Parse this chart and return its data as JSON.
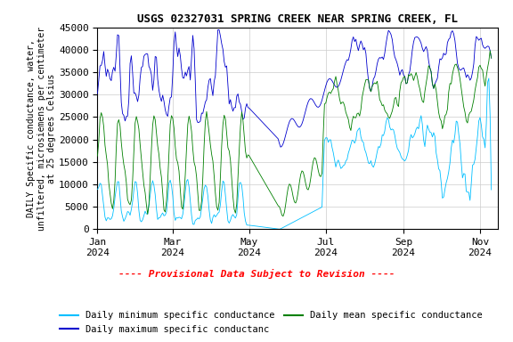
{
  "title": "USGS 02327031 SPRING CREEK NEAR SPRING CREEK, FL",
  "ylabel": "DAILY Specific conductance, water,\nunfiltered, microsiemens per centimeter\nat 25 degrees Celsius",
  "xlabel_ticks": [
    "Jan\n2024",
    "Mar\n2024",
    "May\n2024",
    "Jul\n2024",
    "Sep\n2024",
    "Nov\n2024"
  ],
  "ylim": [
    0,
    45000
  ],
  "yticks": [
    0,
    5000,
    10000,
    15000,
    20000,
    25000,
    30000,
    35000,
    40000,
    45000
  ],
  "color_min": "#00BFFF",
  "color_max": "#0000CD",
  "color_mean": "#008000",
  "provisional_text": "---- Provisional Data Subject to Revision ----",
  "provisional_color": "#FF0000",
  "background_color": "#ffffff",
  "title_fontsize": 9,
  "font_family": "monospace"
}
